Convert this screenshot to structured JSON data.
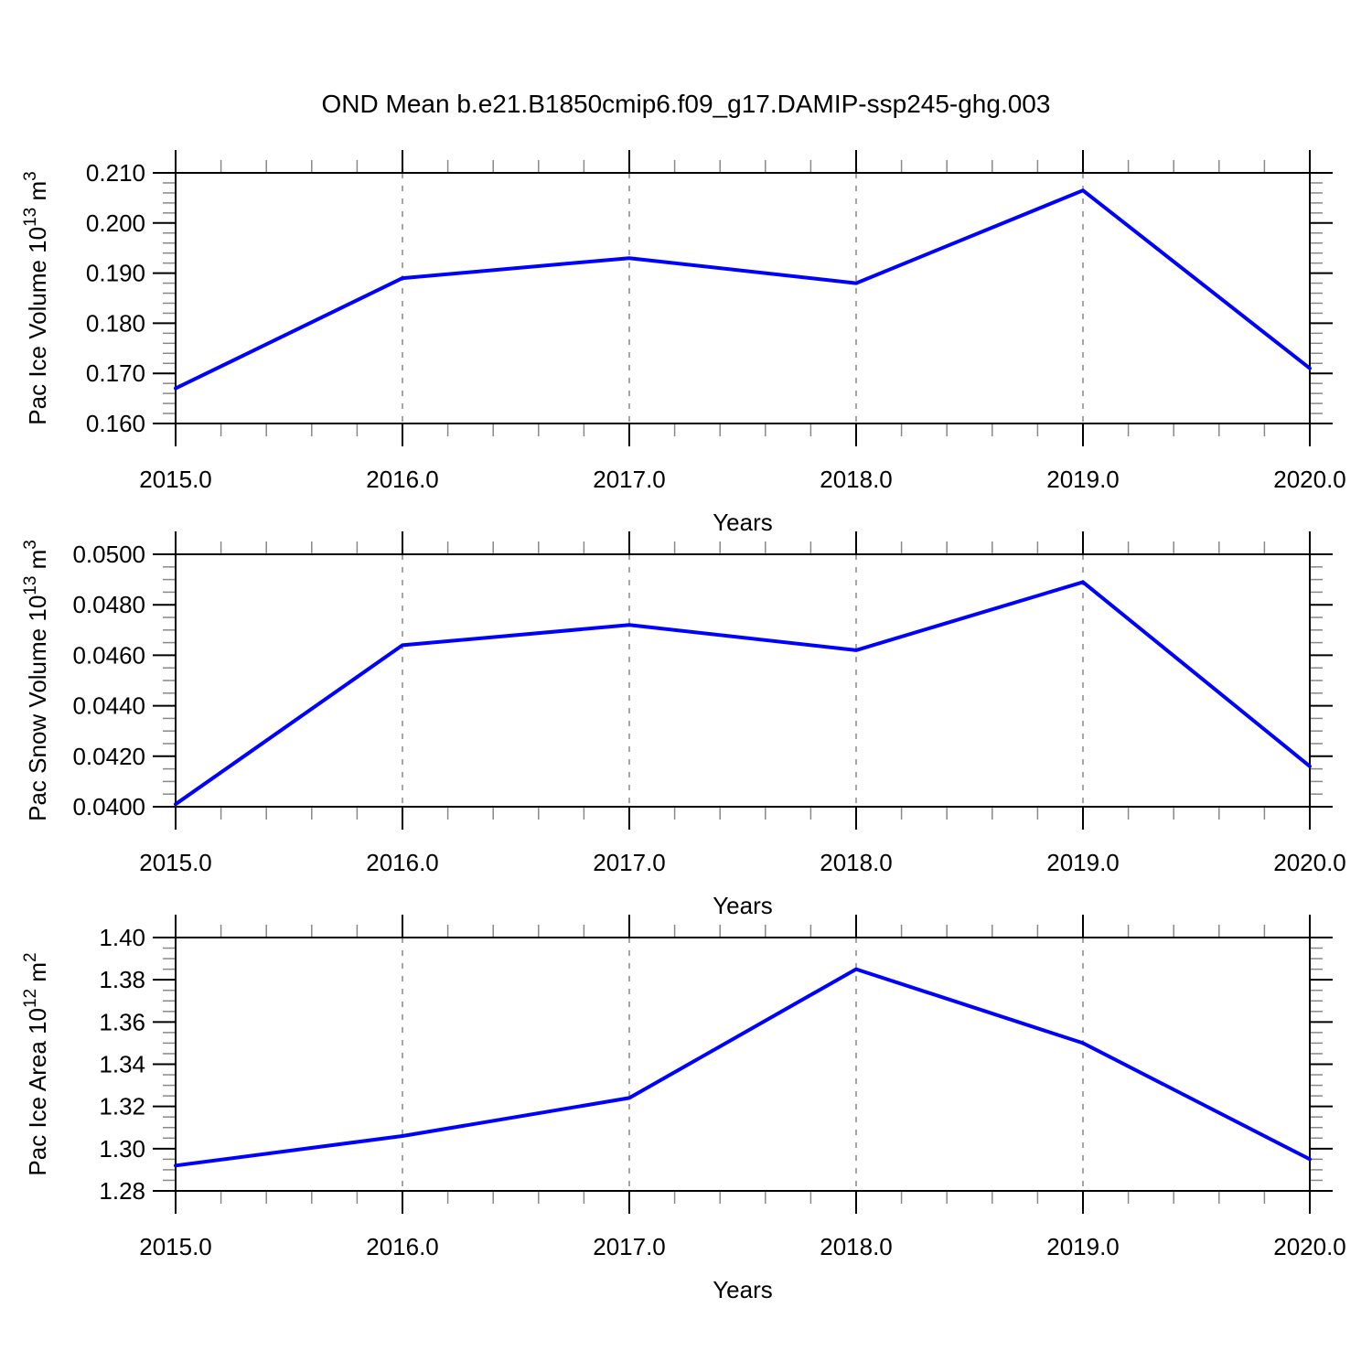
{
  "title": "OND Mean b.e21.B1850cmip6.f09_g17.DAMIP-ssp245-ghg.003",
  "line_color": "#0000ff",
  "chart_data": [
    {
      "type": "line",
      "title": "",
      "xlabel": "Years",
      "ylabel": "Pac Ice Volume 10^13 m^3",
      "ylabel_parts": [
        {
          "t": "Pac Ice Volume 10"
        },
        {
          "t": "13",
          "sup": true
        },
        {
          "t": " m"
        },
        {
          "t": "3",
          "sup": true
        }
      ],
      "x": [
        2015,
        2016,
        2017,
        2018,
        2019,
        2020
      ],
      "values": [
        0.167,
        0.189,
        0.193,
        0.188,
        0.2065,
        0.171
      ],
      "xlim": [
        2015,
        2020
      ],
      "ylim": [
        0.16,
        0.21
      ],
      "xtick_labels": [
        "2015.0",
        "2016.0",
        "2017.0",
        "2018.0",
        "2019.0",
        "2020.0"
      ],
      "ytick_labels": [
        "0.160",
        "0.170",
        "0.180",
        "0.190",
        "0.200",
        "0.210"
      ],
      "ytick_step": 0.01,
      "yminor_step": 0.002,
      "xminor_step": 0.2,
      "grid_x": [
        2016,
        2017,
        2018,
        2019
      ],
      "grid_on": "vertical-dashed-only"
    },
    {
      "type": "line",
      "title": "",
      "xlabel": "Years",
      "ylabel": "Pac Snow Volume 10^13 m^3",
      "ylabel_parts": [
        {
          "t": "Pac Snow Volume 10"
        },
        {
          "t": "13",
          "sup": true
        },
        {
          "t": " m"
        },
        {
          "t": "3",
          "sup": true
        }
      ],
      "x": [
        2015,
        2016,
        2017,
        2018,
        2019,
        2020
      ],
      "values": [
        0.0401,
        0.0464,
        0.0472,
        0.0462,
        0.0489,
        0.0416
      ],
      "xlim": [
        2015,
        2020
      ],
      "ylim": [
        0.04,
        0.05
      ],
      "xtick_labels": [
        "2015.0",
        "2016.0",
        "2017.0",
        "2018.0",
        "2019.0",
        "2020.0"
      ],
      "ytick_labels": [
        "0.0400",
        "0.0420",
        "0.0440",
        "0.0460",
        "0.0480",
        "0.0500"
      ],
      "ytick_step": 0.002,
      "yminor_step": 0.0005,
      "xminor_step": 0.2,
      "grid_x": [
        2016,
        2017,
        2018,
        2019
      ],
      "grid_on": "vertical-dashed-only"
    },
    {
      "type": "line",
      "title": "",
      "xlabel": "Years",
      "ylabel": "Pac Ice Area 10^12 m^2",
      "ylabel_parts": [
        {
          "t": "Pac Ice Area 10"
        },
        {
          "t": "12",
          "sup": true
        },
        {
          "t": " m"
        },
        {
          "t": "2",
          "sup": true
        }
      ],
      "x": [
        2015,
        2016,
        2017,
        2018,
        2019,
        2020
      ],
      "values": [
        1.292,
        1.306,
        1.324,
        1.385,
        1.35,
        1.295
      ],
      "xlim": [
        2015,
        2020
      ],
      "ylim": [
        1.28,
        1.4
      ],
      "xtick_labels": [
        "2015.0",
        "2016.0",
        "2017.0",
        "2018.0",
        "2019.0",
        "2020.0"
      ],
      "ytick_labels": [
        "1.28",
        "1.30",
        "1.32",
        "1.34",
        "1.36",
        "1.38",
        "1.40"
      ],
      "ytick_step": 0.02,
      "yminor_step": 0.005,
      "xminor_step": 0.2,
      "grid_x": [
        2016,
        2017,
        2018,
        2019
      ],
      "grid_on": "vertical-dashed-only"
    }
  ]
}
